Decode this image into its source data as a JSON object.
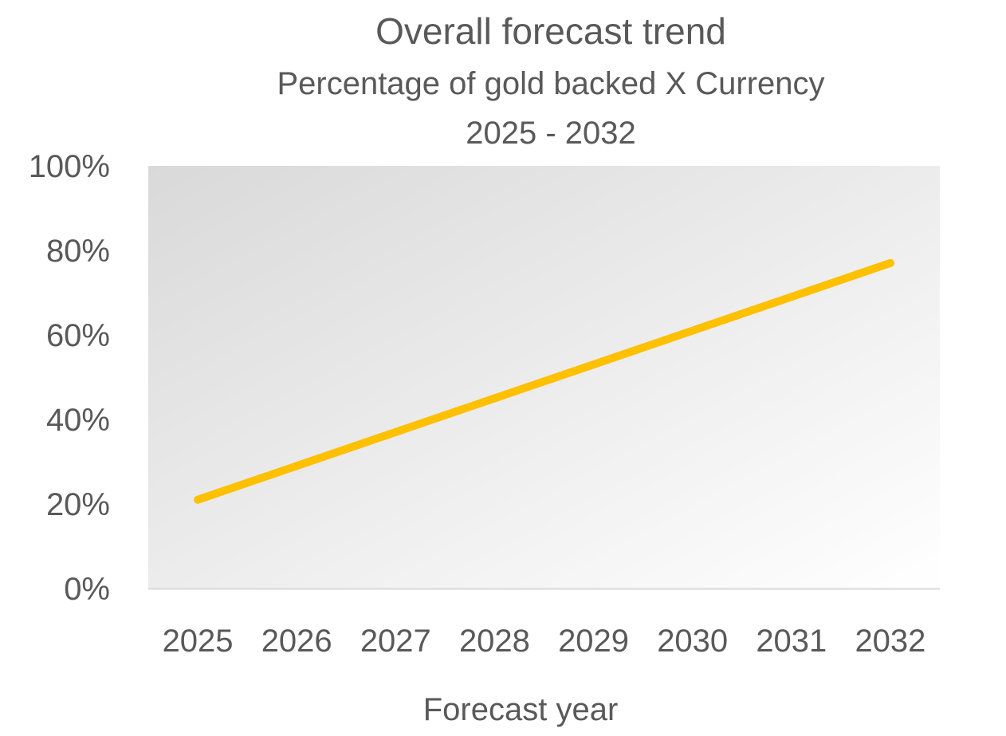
{
  "chart_data": {
    "type": "line",
    "title": "Overall forecast trend",
    "subtitle_lines": [
      "Percentage of gold backed X Currency",
      "2025 - 2032"
    ],
    "xlabel": "Forecast year",
    "ylabel": "",
    "categories": [
      "2025",
      "2026",
      "2027",
      "2028",
      "2029",
      "2030",
      "2031",
      "2032"
    ],
    "series": [
      {
        "values": [
          21,
          29,
          37,
          45,
          53,
          61,
          69,
          77
        ],
        "color": "#FFC000"
      }
    ],
    "ylim": [
      0,
      100
    ],
    "y_ticks": [
      {
        "value": 0,
        "label": "0%"
      },
      {
        "value": 20,
        "label": "20%"
      },
      {
        "value": 40,
        "label": "40%"
      },
      {
        "value": 60,
        "label": "60%"
      },
      {
        "value": 80,
        "label": "80%"
      },
      {
        "value": 100,
        "label": "100%"
      }
    ],
    "grid": false,
    "legend": "none",
    "colors": {
      "plot_background_start": "#D9D9D9",
      "plot_background_end": "#FFFFFF",
      "axis_line": "#D9D9D9",
      "text": "#595959"
    }
  }
}
